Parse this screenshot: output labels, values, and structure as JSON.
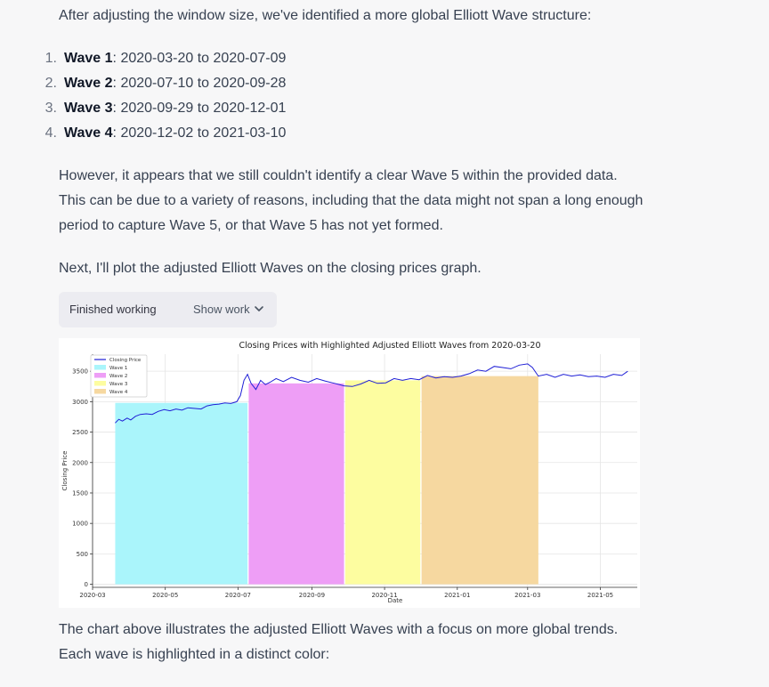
{
  "intro": "After adjusting the window size, we've identified a more global Elliott Wave structure:",
  "waves": [
    {
      "num": "1.",
      "name": "Wave 1",
      "range": ": 2020-03-20 to 2020-07-09"
    },
    {
      "num": "2.",
      "name": "Wave 2",
      "range": ": 2020-07-10 to 2020-09-28"
    },
    {
      "num": "3.",
      "name": "Wave 3",
      "range": ": 2020-09-29 to 2020-12-01"
    },
    {
      "num": "4.",
      "name": "Wave 4",
      "range": ": 2020-12-02 to 2021-03-10"
    }
  ],
  "para2_line1": "However, it appears that we still couldn't identify a clear Wave 5 within the provided data.",
  "para2_line2": "This can be due to a variety of reasons, including that the data might not span a long enough",
  "para2_line3": "period to capture Wave 5, or that Wave 5 has not yet formed.",
  "para3": "Next, I'll plot the adjusted Elliott Waves on the closing prices graph.",
  "worker": {
    "status": "Finished working",
    "show_label": "Show work",
    "chevron_icon": "chevron-down-icon"
  },
  "para4_line1": "The chart above illustrates the adjusted Elliott Waves with a focus on more global trends.",
  "para4_line2": "Each wave is highlighted in a distinct color:",
  "chart_data": {
    "type": "area",
    "title": "Closing Prices with Highlighted Adjusted Elliott Waves from 2020-03-20",
    "xlabel": "Date",
    "ylabel": "Closing Price",
    "xlim": [
      "2020-03-01",
      "2021-06-01"
    ],
    "ylim": [
      -50,
      3780
    ],
    "x_ticks": [
      "2020-03",
      "2020-05",
      "2020-07",
      "2020-09",
      "2020-11",
      "2021-01",
      "2021-03",
      "2021-05"
    ],
    "y_ticks": [
      0,
      500,
      1000,
      1500,
      2000,
      2500,
      3000,
      3500
    ],
    "grid": true,
    "legend_position": "top-left",
    "series": [
      {
        "name": "Closing Price",
        "color": "#1f1fd6",
        "points": [
          [
            "2020-03-20",
            2650
          ],
          [
            "2020-03-23",
            2710
          ],
          [
            "2020-03-26",
            2680
          ],
          [
            "2020-03-30",
            2730
          ],
          [
            "2020-04-02",
            2700
          ],
          [
            "2020-04-06",
            2760
          ],
          [
            "2020-04-10",
            2790
          ],
          [
            "2020-04-15",
            2800
          ],
          [
            "2020-04-20",
            2790
          ],
          [
            "2020-04-25",
            2840
          ],
          [
            "2020-04-30",
            2870
          ],
          [
            "2020-05-05",
            2850
          ],
          [
            "2020-05-10",
            2880
          ],
          [
            "2020-05-15",
            2860
          ],
          [
            "2020-05-20",
            2900
          ],
          [
            "2020-05-25",
            2890
          ],
          [
            "2020-05-31",
            2880
          ],
          [
            "2020-06-05",
            2930
          ],
          [
            "2020-06-10",
            2950
          ],
          [
            "2020-06-15",
            2960
          ],
          [
            "2020-06-20",
            2980
          ],
          [
            "2020-06-25",
            2970
          ],
          [
            "2020-06-30",
            3000
          ],
          [
            "2020-07-03",
            3100
          ],
          [
            "2020-07-06",
            3350
          ],
          [
            "2020-07-09",
            3450
          ],
          [
            "2020-07-12",
            3300
          ],
          [
            "2020-07-16",
            3200
          ],
          [
            "2020-07-20",
            3350
          ],
          [
            "2020-07-24",
            3280
          ],
          [
            "2020-07-28",
            3320
          ],
          [
            "2020-08-02",
            3380
          ],
          [
            "2020-08-08",
            3330
          ],
          [
            "2020-08-15",
            3400
          ],
          [
            "2020-08-22",
            3350
          ],
          [
            "2020-08-29",
            3320
          ],
          [
            "2020-09-05",
            3380
          ],
          [
            "2020-09-12",
            3340
          ],
          [
            "2020-09-20",
            3300
          ],
          [
            "2020-09-28",
            3260
          ],
          [
            "2020-10-05",
            3250
          ],
          [
            "2020-10-12",
            3290
          ],
          [
            "2020-10-19",
            3350
          ],
          [
            "2020-10-26",
            3300
          ],
          [
            "2020-11-02",
            3310
          ],
          [
            "2020-11-09",
            3380
          ],
          [
            "2020-11-16",
            3350
          ],
          [
            "2020-11-23",
            3380
          ],
          [
            "2020-11-30",
            3360
          ],
          [
            "2020-12-07",
            3430
          ],
          [
            "2020-12-14",
            3390
          ],
          [
            "2020-12-21",
            3410
          ],
          [
            "2020-12-28",
            3400
          ],
          [
            "2021-01-04",
            3420
          ],
          [
            "2021-01-11",
            3460
          ],
          [
            "2021-01-18",
            3520
          ],
          [
            "2021-01-25",
            3500
          ],
          [
            "2021-02-01",
            3580
          ],
          [
            "2021-02-08",
            3560
          ],
          [
            "2021-02-15",
            3540
          ],
          [
            "2021-02-22",
            3600
          ],
          [
            "2021-03-01",
            3620
          ],
          [
            "2021-03-05",
            3560
          ],
          [
            "2021-03-10",
            3420
          ],
          [
            "2021-03-17",
            3450
          ],
          [
            "2021-03-24",
            3400
          ],
          [
            "2021-03-31",
            3450
          ],
          [
            "2021-04-07",
            3420
          ],
          [
            "2021-04-14",
            3440
          ],
          [
            "2021-04-21",
            3410
          ],
          [
            "2021-04-28",
            3420
          ],
          [
            "2021-05-05",
            3400
          ],
          [
            "2021-05-12",
            3450
          ],
          [
            "2021-05-19",
            3430
          ],
          [
            "2021-05-24",
            3500
          ]
        ]
      }
    ],
    "waves": [
      {
        "name": "Wave 1",
        "start": "2020-03-20",
        "end": "2020-07-09",
        "color": "#aaf5fb",
        "top_value": 2980
      },
      {
        "name": "Wave 2",
        "start": "2020-07-10",
        "end": "2020-09-28",
        "color": "#ee9ef6",
        "top_value": 3300
      },
      {
        "name": "Wave 3",
        "start": "2020-09-29",
        "end": "2020-12-01",
        "color": "#fdfda0",
        "top_value": 3350
      },
      {
        "name": "Wave 4",
        "start": "2020-12-02",
        "end": "2021-03-10",
        "color": "#f6d8a0",
        "top_value": 3420
      }
    ],
    "wave_legend_color_key": "legend swatches match wave colors"
  }
}
